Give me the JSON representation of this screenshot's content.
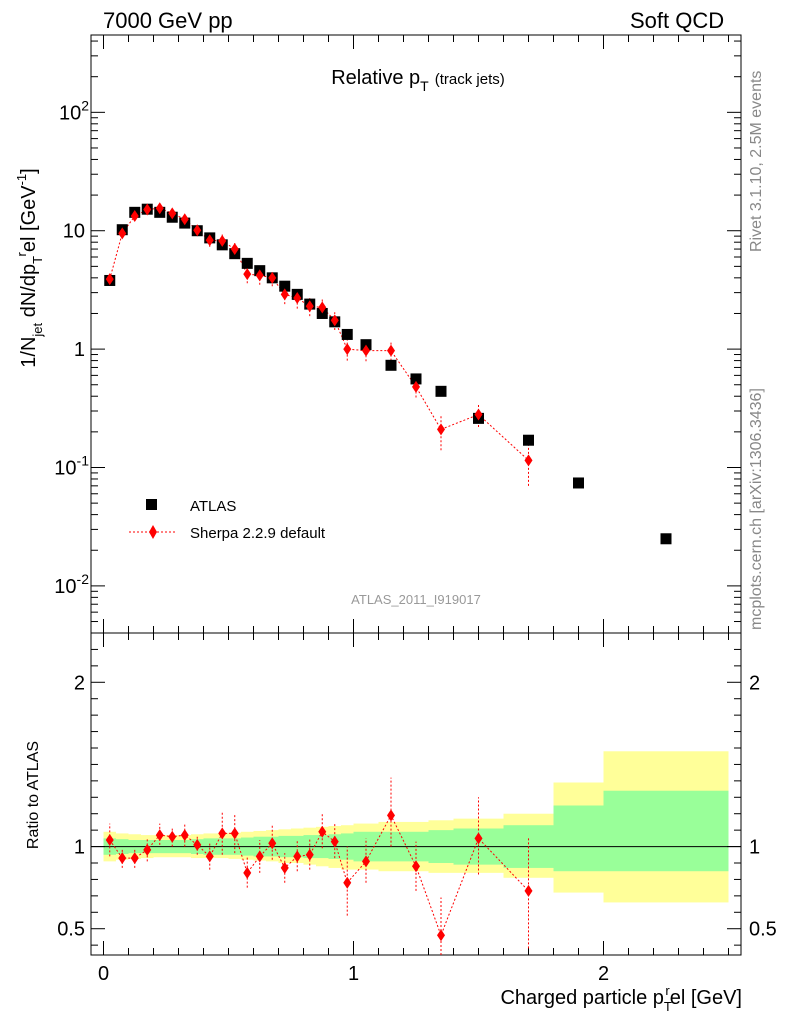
{
  "header": {
    "left": "7000 GeV pp",
    "right": "Soft QCD"
  },
  "side_labels": {
    "rivet": "Rivet 3.1.10,  2.5M events",
    "mcplots": "mcplots.cern.ch [arXiv:1306.3436]"
  },
  "chart_data": [
    {
      "type": "scatter",
      "panel": "main",
      "title": "Relative p_T (track jets)",
      "title_main": "Relative p",
      "title_sub": "T",
      "title_small": "(track jets)",
      "watermark": "ATLAS_2011_I919017",
      "ylabel": "1/N_jet dN/dp_T^rel [GeV^-1]",
      "ylabel_parts": {
        "a": "1/N",
        "a_sub": "jet",
        "b": " dN/dp",
        "b_sub": "T",
        "b_sup": "r",
        "c": "el [GeV",
        "c_sup": "-1",
        "d": "]"
      },
      "yscale": "log",
      "xlim": [
        -0.05,
        2.55
      ],
      "ylim": [
        0.004,
        450
      ],
      "y_ticks": [
        {
          "value": 0.01,
          "base": "10",
          "exp": "-2"
        },
        {
          "value": 0.1,
          "base": "10",
          "exp": "-1"
        },
        {
          "value": 1,
          "label": "1"
        },
        {
          "value": 10,
          "label": "10"
        },
        {
          "value": 100,
          "base": "10",
          "exp": "2"
        }
      ],
      "legend": {
        "position": "bottom-left",
        "atlas": "ATLAS",
        "sherpa": "Sherpa 2.2.9 default"
      },
      "series": [
        {
          "name": "ATLAS",
          "color": "#000000",
          "marker": "square",
          "x": [
            0.025,
            0.075,
            0.125,
            0.175,
            0.225,
            0.275,
            0.325,
            0.375,
            0.425,
            0.475,
            0.525,
            0.575,
            0.625,
            0.675,
            0.725,
            0.775,
            0.825,
            0.875,
            0.925,
            0.975,
            1.05,
            1.15,
            1.25,
            1.35,
            1.5,
            1.7,
            1.9,
            2.25
          ],
          "y": [
            3.8,
            10.2,
            14.3,
            15.2,
            14.3,
            13.0,
            11.6,
            10.0,
            8.7,
            7.6,
            6.4,
            5.3,
            4.6,
            4.0,
            3.4,
            2.9,
            2.4,
            2.0,
            1.7,
            1.33,
            1.09,
            0.73,
            0.56,
            0.44,
            0.26,
            0.17,
            0.074,
            0.025
          ]
        },
        {
          "name": "Sherpa 2.2.9 default",
          "color": "#ff0000",
          "marker": "diamond",
          "x": [
            0.025,
            0.075,
            0.125,
            0.175,
            0.225,
            0.275,
            0.325,
            0.375,
            0.425,
            0.475,
            0.525,
            0.575,
            0.625,
            0.675,
            0.725,
            0.775,
            0.825,
            0.875,
            0.925,
            0.975,
            1.05,
            1.15,
            1.25,
            1.35,
            1.5,
            1.7
          ],
          "y": [
            3.9,
            9.5,
            13.3,
            15.1,
            15.5,
            14.0,
            12.5,
            10.1,
            8.3,
            8.2,
            7.0,
            4.3,
            4.2,
            4.0,
            2.9,
            2.7,
            2.3,
            2.25,
            1.75,
            1.0,
            0.97,
            0.97,
            0.48,
            0.21,
            0.28,
            0.115
          ],
          "y_low": [
            3.5,
            8.7,
            12.3,
            13.9,
            14.4,
            12.8,
            11.3,
            9.0,
            7.3,
            7.1,
            6.0,
            3.6,
            3.5,
            3.4,
            2.4,
            2.2,
            1.9,
            1.85,
            1.45,
            0.8,
            0.79,
            0.8,
            0.39,
            0.14,
            0.22,
            0.07
          ],
          "y_high": [
            4.3,
            10.3,
            14.3,
            16.3,
            16.6,
            15.2,
            13.7,
            11.2,
            9.3,
            9.3,
            8.0,
            5.0,
            4.9,
            4.6,
            3.4,
            3.2,
            2.7,
            2.65,
            2.05,
            1.2,
            1.15,
            1.14,
            0.57,
            0.28,
            0.34,
            0.16
          ]
        }
      ]
    },
    {
      "type": "scatter",
      "panel": "ratio",
      "ylabel": "Ratio to ATLAS",
      "xlabel": "Charged particle p_T^rel [GeV]",
      "xlabel_parts": {
        "a": "Charged particle p",
        "sub": "T",
        "sup": "r",
        "b": "el [GeV]"
      },
      "xlim": [
        -0.05,
        2.55
      ],
      "ylim": [
        0.34,
        2.3
      ],
      "x_ticks": [
        0,
        1,
        2
      ],
      "y_ticks": [
        0.5,
        1,
        2
      ],
      "bands": {
        "edges": [
          0.0,
          0.05,
          0.1,
          0.15,
          0.2,
          0.25,
          0.3,
          0.35,
          0.4,
          0.45,
          0.5,
          0.55,
          0.6,
          0.65,
          0.7,
          0.75,
          0.8,
          0.85,
          0.9,
          0.95,
          1.0,
          1.1,
          1.2,
          1.3,
          1.4,
          1.6,
          1.8,
          2.0,
          2.5
        ],
        "stat_low": [
          0.95,
          0.955,
          0.96,
          0.96,
          0.96,
          0.96,
          0.96,
          0.955,
          0.95,
          0.95,
          0.95,
          0.945,
          0.94,
          0.94,
          0.935,
          0.935,
          0.93,
          0.93,
          0.925,
          0.92,
          0.91,
          0.91,
          0.91,
          0.9,
          0.89,
          0.87,
          0.85,
          0.85
        ],
        "stat_high": [
          1.05,
          1.045,
          1.04,
          1.04,
          1.04,
          1.04,
          1.04,
          1.045,
          1.05,
          1.05,
          1.05,
          1.055,
          1.06,
          1.06,
          1.065,
          1.065,
          1.07,
          1.07,
          1.075,
          1.08,
          1.09,
          1.09,
          1.09,
          1.1,
          1.11,
          1.13,
          1.25,
          1.34
        ],
        "total_low": [
          0.91,
          0.92,
          0.925,
          0.93,
          0.935,
          0.935,
          0.935,
          0.93,
          0.93,
          0.93,
          0.925,
          0.92,
          0.915,
          0.91,
          0.9,
          0.9,
          0.89,
          0.88,
          0.87,
          0.86,
          0.86,
          0.85,
          0.85,
          0.84,
          0.84,
          0.81,
          0.72,
          0.66
        ],
        "total_high": [
          1.09,
          1.08,
          1.075,
          1.07,
          1.07,
          1.07,
          1.07,
          1.075,
          1.08,
          1.08,
          1.085,
          1.09,
          1.095,
          1.1,
          1.105,
          1.11,
          1.115,
          1.12,
          1.125,
          1.13,
          1.14,
          1.15,
          1.15,
          1.16,
          1.17,
          1.2,
          1.39,
          1.58
        ]
      },
      "series": [
        {
          "name": "Sherpa 2.2.9 default / ATLAS",
          "color": "#ff0000",
          "x": [
            0.025,
            0.075,
            0.125,
            0.175,
            0.225,
            0.275,
            0.325,
            0.375,
            0.425,
            0.475,
            0.525,
            0.575,
            0.625,
            0.675,
            0.725,
            0.775,
            0.825,
            0.875,
            0.925,
            0.975,
            1.05,
            1.15,
            1.25,
            1.35,
            1.5,
            1.7
          ],
          "y": [
            1.04,
            0.93,
            0.93,
            0.98,
            1.07,
            1.06,
            1.07,
            1.01,
            0.94,
            1.08,
            1.08,
            0.84,
            0.94,
            1.02,
            0.87,
            0.94,
            0.95,
            1.09,
            1.03,
            0.78,
            0.91,
            1.19,
            0.88,
            0.46,
            1.05,
            0.73
          ],
          "y_low": [
            0.94,
            0.87,
            0.87,
            0.91,
            1.01,
            1.0,
            1.0,
            0.95,
            0.86,
            0.95,
            0.96,
            0.75,
            0.84,
            0.92,
            0.78,
            0.85,
            0.86,
            0.99,
            0.93,
            0.58,
            0.78,
            1.0,
            0.73,
            0.28,
            0.83,
            0.38
          ],
          "y_high": [
            1.14,
            0.99,
            0.99,
            1.05,
            1.14,
            1.12,
            1.14,
            1.07,
            1.02,
            1.21,
            1.2,
            0.94,
            1.04,
            1.13,
            0.96,
            1.04,
            1.05,
            1.2,
            1.14,
            1.0,
            1.05,
            1.42,
            1.03,
            0.69,
            1.3,
            1.06
          ]
        }
      ]
    }
  ]
}
